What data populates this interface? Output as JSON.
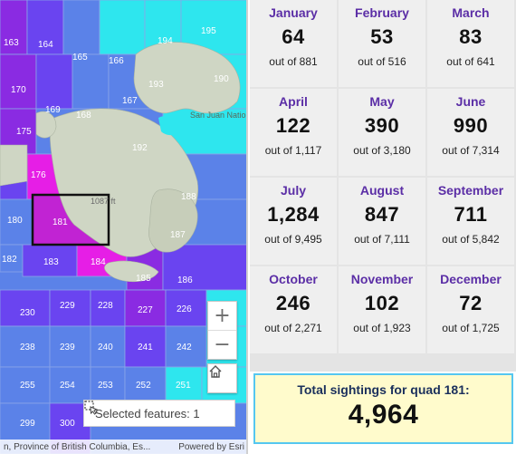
{
  "map": {
    "quads": [
      {
        "id": "163"
      },
      {
        "id": "164"
      },
      {
        "id": "165"
      },
      {
        "id": "166"
      },
      {
        "id": "194"
      },
      {
        "id": "195"
      },
      {
        "id": "170"
      },
      {
        "id": "193"
      },
      {
        "id": "190"
      },
      {
        "id": "169"
      },
      {
        "id": "168"
      },
      {
        "id": "167"
      },
      {
        "id": "175"
      },
      {
        "id": "192"
      },
      {
        "id": "176"
      },
      {
        "id": "188"
      },
      {
        "id": "180"
      },
      {
        "id": "181"
      },
      {
        "id": "187"
      },
      {
        "id": "182"
      },
      {
        "id": "183"
      },
      {
        "id": "184"
      },
      {
        "id": "185"
      },
      {
        "id": "186"
      },
      {
        "id": "230"
      },
      {
        "id": "229"
      },
      {
        "id": "228"
      },
      {
        "id": "227"
      },
      {
        "id": "226"
      },
      {
        "id": "238"
      },
      {
        "id": "239"
      },
      {
        "id": "240"
      },
      {
        "id": "241"
      },
      {
        "id": "242"
      },
      {
        "id": "255"
      },
      {
        "id": "254"
      },
      {
        "id": "253"
      },
      {
        "id": "252"
      },
      {
        "id": "251"
      },
      {
        "id": "299"
      },
      {
        "id": "300"
      }
    ],
    "place_labels": {
      "island": "San Juan National Monument",
      "elevation": "1087 ft"
    },
    "zoom_in": "+",
    "zoom_out": "−",
    "selected_text": "Selected features: 1",
    "attribution": "n, Province of British Columbia, Es...",
    "powered_by": "Powered by Esri",
    "colors": {
      "magenta": "#e61ee6",
      "purple": "#8a2be2",
      "violet": "#6a44f0",
      "blue": "#5b82e8",
      "cyan": "#2ee6ee"
    }
  },
  "months": [
    {
      "name": "January",
      "value": "64",
      "out_of": "out of 881"
    },
    {
      "name": "February",
      "value": "53",
      "out_of": "out of 516"
    },
    {
      "name": "March",
      "value": "83",
      "out_of": "out of 641"
    },
    {
      "name": "April",
      "value": "122",
      "out_of": "out of 1,117"
    },
    {
      "name": "May",
      "value": "390",
      "out_of": "out of 3,180"
    },
    {
      "name": "June",
      "value": "990",
      "out_of": "out of 7,314"
    },
    {
      "name": "July",
      "value": "1,284",
      "out_of": "out of 9,495"
    },
    {
      "name": "August",
      "value": "847",
      "out_of": "out of 7,111"
    },
    {
      "name": "September",
      "value": "711",
      "out_of": "out of 5,842"
    },
    {
      "name": "October",
      "value": "246",
      "out_of": "out of 2,271"
    },
    {
      "name": "November",
      "value": "102",
      "out_of": "out of 1,923"
    },
    {
      "name": "December",
      "value": "72",
      "out_of": "out of 1,725"
    }
  ],
  "total": {
    "label": "Total sightings for quad 181:",
    "value": "4,964"
  }
}
